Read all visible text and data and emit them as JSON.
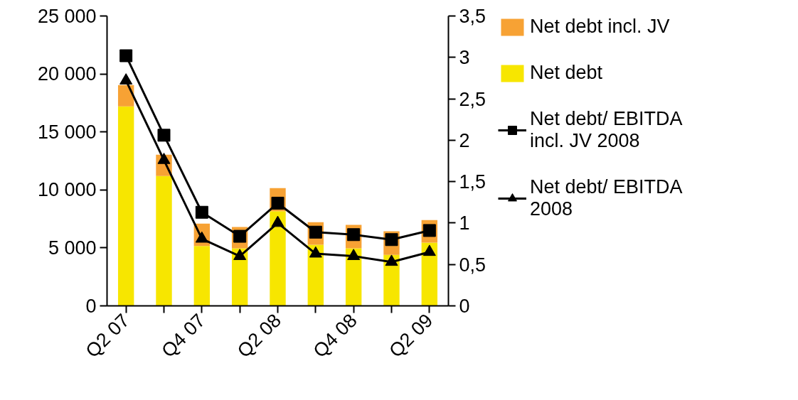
{
  "chart_data": {
    "type": "bar",
    "stacked": true,
    "categories": [
      "Q2 07",
      null,
      "Q4 07",
      null,
      "Q2 08",
      null,
      "Q4 08",
      null,
      "Q2 09"
    ],
    "series": [
      {
        "name": "Net debt",
        "color": "#f7e600",
        "values": [
          17200,
          11200,
          5160,
          4960,
          8160,
          5270,
          4960,
          4400,
          5450
        ]
      },
      {
        "name": "Net debt incl. JV",
        "color": "#f7a234",
        "values": [
          1840,
          1840,
          1940,
          1840,
          2000,
          1950,
          2020,
          2030,
          1950
        ]
      },
      {
        "name": "Net debt/ EBITDA incl. JV 2008",
        "type": "line",
        "axis": "y2",
        "marker": "square",
        "color": "#000000",
        "values": [
          3.02,
          2.06,
          1.13,
          0.84,
          1.24,
          0.89,
          0.86,
          0.8,
          0.91
        ]
      },
      {
        "name": "Net debt/ EBITDA 2008",
        "type": "line",
        "axis": "y2",
        "marker": "triangle",
        "color": "#000000",
        "values": [
          2.72,
          1.76,
          0.81,
          0.6,
          1.0,
          0.63,
          0.6,
          0.53,
          0.65
        ]
      }
    ],
    "ylim": [
      0,
      25000
    ],
    "yticks": [
      0,
      {
        "value": 5000,
        "label": "5 000"
      },
      {
        "value": 10000,
        "label": "10 000"
      },
      {
        "value": 15000,
        "label": "15 000"
      },
      {
        "value": 20000,
        "label": "20 000"
      },
      {
        "value": 25000,
        "label": "25 000"
      }
    ],
    "y2lim": [
      0,
      3.5
    ],
    "y2ticks": [
      0,
      {
        "value": 0.5,
        "label": "0,5"
      },
      1,
      {
        "value": 1.5,
        "label": "1,5"
      },
      2,
      {
        "value": 2.5,
        "label": "2,5"
      },
      3,
      {
        "value": 3.5,
        "label": "3,5"
      }
    ],
    "grid": false,
    "legend": "right",
    "line_style": "solid"
  }
}
